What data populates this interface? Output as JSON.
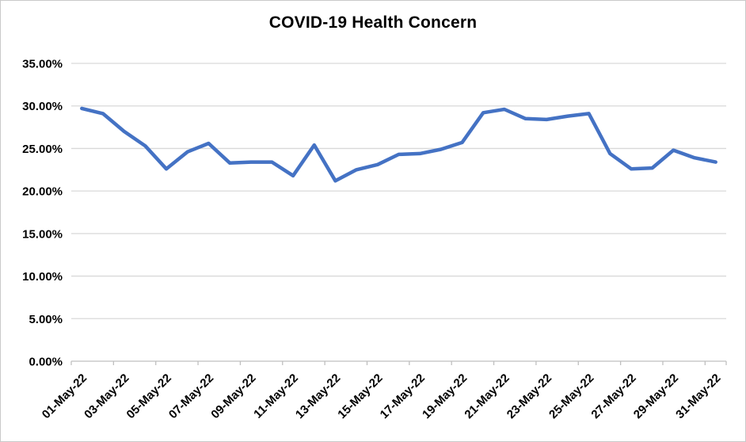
{
  "title": "COVID-19 Health Concern",
  "chart_data": {
    "type": "line",
    "title": "COVID-19 Health Concern",
    "x": [
      "01-May-22",
      "02-May-22",
      "03-May-22",
      "04-May-22",
      "05-May-22",
      "06-May-22",
      "07-May-22",
      "08-May-22",
      "09-May-22",
      "10-May-22",
      "11-May-22",
      "12-May-22",
      "13-May-22",
      "14-May-22",
      "15-May-22",
      "16-May-22",
      "17-May-22",
      "18-May-22",
      "19-May-22",
      "20-May-22",
      "21-May-22",
      "22-May-22",
      "23-May-22",
      "24-May-22",
      "25-May-22",
      "26-May-22",
      "27-May-22",
      "28-May-22",
      "29-May-22",
      "30-May-22",
      "31-May-22"
    ],
    "series": [
      {
        "name": "COVID-19 Health Concern",
        "values": [
          29.7,
          29.1,
          27.0,
          25.3,
          22.6,
          24.6,
          25.6,
          23.3,
          23.4,
          23.4,
          21.8,
          25.4,
          21.2,
          22.5,
          23.1,
          24.3,
          24.4,
          24.9,
          25.7,
          29.2,
          29.6,
          28.5,
          28.4,
          28.8,
          29.1,
          24.4,
          22.6,
          22.7,
          24.8,
          23.9,
          23.4
        ]
      }
    ],
    "value_unit": "%",
    "ylim": [
      0,
      35
    ],
    "y_tick_step": 5,
    "y_tick_labels": [
      "0.00%",
      "5.00%",
      "10.00%",
      "15.00%",
      "20.00%",
      "25.00%",
      "30.00%",
      "35.00%"
    ],
    "x_label_every_n": 2,
    "x_label_rotation_deg": -45,
    "grid": "horizontal",
    "legend": "none",
    "line_color": "#4472C4",
    "gridline_color": "#D9D9D9",
    "axis_color": "#BFBFBF",
    "label_color": "#000000",
    "background_color": "#FFFFFF"
  }
}
